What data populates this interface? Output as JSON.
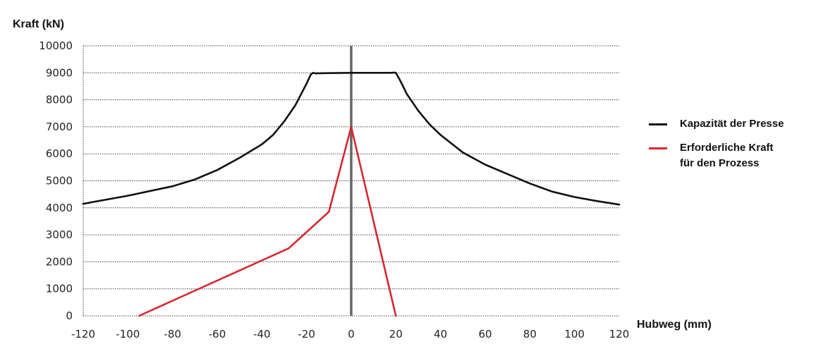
{
  "chart_data": {
    "type": "line",
    "ylabel": "Kraft (kN)",
    "xlabel": "Hubweg (mm)",
    "xlim": [
      -120,
      120
    ],
    "ylim": [
      0,
      10000
    ],
    "xticks": [
      -120,
      -100,
      -80,
      -60,
      -40,
      -20,
      0,
      20,
      40,
      60,
      80,
      100,
      120
    ],
    "yticks": [
      0,
      1000,
      2000,
      3000,
      4000,
      5000,
      6000,
      7000,
      8000,
      9000,
      10000
    ],
    "grid": "horizontal dotted",
    "legend_position": "right",
    "series": [
      {
        "name": "Kapazität der Presse",
        "color": "#111111",
        "x": [
          -120,
          -100,
          -80,
          -70,
          -60,
          -50,
          -40,
          -35,
          -30,
          -25,
          -20,
          -18,
          -17,
          -16,
          -10,
          0,
          10,
          18,
          19,
          20,
          22,
          25,
          30,
          35,
          40,
          50,
          60,
          70,
          80,
          90,
          100,
          110,
          120
        ],
        "y": [
          4150,
          4450,
          4800,
          5050,
          5400,
          5850,
          6350,
          6700,
          7200,
          7800,
          8600,
          8950,
          9000,
          8980,
          8990,
          9000,
          9000,
          9000,
          9010,
          9000,
          8700,
          8200,
          7600,
          7100,
          6700,
          6050,
          5600,
          5250,
          4900,
          4600,
          4400,
          4250,
          4120
        ]
      },
      {
        "name": "Erforderliche Kraft\nfür den Prozess",
        "color": "#d7282f",
        "x": [
          -95,
          -28,
          -10,
          0,
          20
        ],
        "y": [
          0,
          2500,
          3850,
          7000,
          0
        ]
      }
    ],
    "vline": {
      "x": 0,
      "color": "#666666"
    }
  }
}
